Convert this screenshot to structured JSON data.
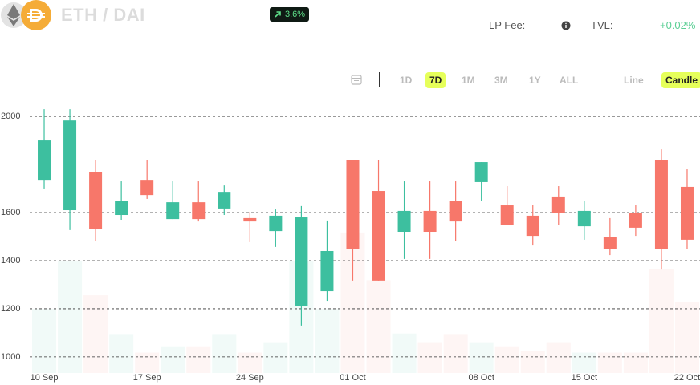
{
  "header": {
    "pair": "ETH / DAI",
    "change": "3.6%",
    "lp_fee_label": "LP Fee:",
    "tvl_label": "TVL:",
    "tvl_change": "+0.02%"
  },
  "toolbar": {
    "ranges": [
      "1D",
      "7D",
      "1M",
      "3M",
      "1Y",
      "ALL"
    ],
    "active_range": "7D",
    "modes": [
      "Line",
      "Candle"
    ],
    "active_mode": "Candle"
  },
  "chart_data": {
    "type": "candlestick",
    "categories": [
      "10 Sep",
      null,
      null,
      null,
      "17 Sep",
      null,
      null,
      null,
      "24 Sep",
      null,
      null,
      null,
      "01 Oct",
      null,
      null,
      null,
      null,
      "08 Oct",
      null,
      null,
      null,
      "15 Oct",
      null,
      null,
      null,
      "22 Oct"
    ],
    "open": [
      1733,
      1610,
      1770,
      1590,
      1733,
      1573,
      1643,
      1617,
      1577,
      1523,
      1210,
      1273,
      1817,
      1690,
      1520,
      1607,
      1650,
      1727,
      1630,
      1587,
      1667,
      1543,
      1497,
      1600,
      1817,
      1707
    ],
    "high": [
      2030,
      2030,
      1817,
      1730,
      1817,
      1730,
      1730,
      1713,
      1603,
      1613,
      1627,
      1567,
      1817,
      1817,
      1730,
      1730,
      1730,
      1810,
      1710,
      1630,
      1710,
      1650,
      1577,
      1630,
      1863,
      1780
    ],
    "low": [
      1697,
      1527,
      1483,
      1570,
      1657,
      1573,
      1563,
      1590,
      1477,
      1457,
      1130,
      1233,
      1317,
      1317,
      1407,
      1407,
      1483,
      1647,
      1547,
      1463,
      1547,
      1487,
      1423,
      1503,
      1363,
      1447
    ],
    "close": [
      1900,
      1983,
      1530,
      1647,
      1673,
      1643,
      1573,
      1683,
      1563,
      1587,
      1580,
      1440,
      1447,
      1317,
      1607,
      1520,
      1563,
      1810,
      1547,
      1503,
      1600,
      1607,
      1447,
      1537,
      1447,
      1487
    ],
    "volume": [
      47,
      82,
      57,
      28,
      15,
      19,
      19,
      28,
      15,
      22,
      82,
      47,
      103,
      68,
      29,
      22,
      28,
      22,
      19,
      16,
      22,
      15,
      15,
      15,
      76,
      52
    ],
    "up_color": "#3dbf9f",
    "down_color": "#f7776a",
    "ylim": [
      933,
      2067
    ],
    "yticks": [
      1000,
      1200,
      1400,
      1600,
      2000
    ],
    "y2lim": [
      0,
      200
    ],
    "grid": true
  }
}
